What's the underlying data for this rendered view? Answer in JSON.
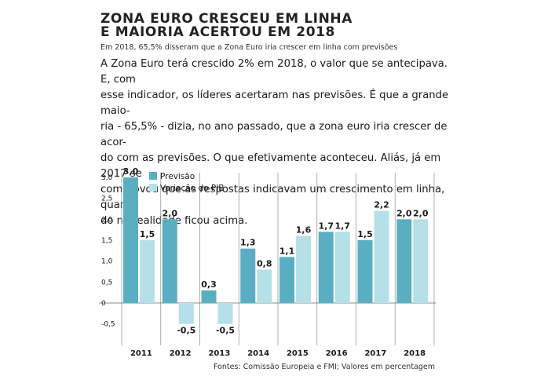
{
  "article": {
    "headline_line1": "ZONA EURO CRESCEU EM LINHA",
    "headline_line2": "E MAIORIA ACERTOU EM 2018",
    "subtitle": "Em 2018, 65,5% disseram que a Zona Euro iria crescer em linha com previsões",
    "body_lines": [
      "A Zona Euro terá crescido 2% em 2018, o valor que se antecipava. E, com",
      "esse indicador, os líderes acertaram nas previsões. É que a grande maio-",
      "ria - 65,5% - dizia, no ano passado, que a zona euro iria crescer de acor-",
      "do com as previsões. O que efetivamente aconteceu. Aliás, já em 2017 se",
      "comprovou que as respostas indicavam um crescimento em linha, quan-",
      "do na realidade ficou acima."
    ],
    "source": "Fontes: Comissão Europeia e FMI; Valores em percentagem"
  },
  "colors": {
    "previsao": "#5aaec1",
    "pib": "#b5e0e8",
    "grid": "#9a9a9a",
    "text": "#1a1a1a"
  },
  "chart_data": {
    "type": "bar",
    "categories": [
      "2011",
      "2012",
      "2013",
      "2014",
      "2015",
      "2016",
      "2017",
      "2018"
    ],
    "series": [
      {
        "name": "Previsão",
        "values": [
          3.0,
          2.0,
          0.3,
          1.3,
          1.1,
          1.7,
          1.5,
          2.0
        ],
        "labels": [
          "3,0",
          "2,0",
          "0,3",
          "1,3",
          "1,1",
          "1,7",
          "1,5",
          "2,0"
        ]
      },
      {
        "name": "Variação do PIB",
        "values": [
          1.5,
          -0.5,
          -0.5,
          0.8,
          1.6,
          1.7,
          2.2,
          2.0
        ],
        "labels": [
          "1,5",
          "-0,5",
          "-0,5",
          "0,8",
          "1,6",
          "1,7",
          "2,2",
          "2,0"
        ]
      }
    ],
    "yticks": [
      3.0,
      2.5,
      2.0,
      1.5,
      1.0,
      0.5,
      0,
      -0.5
    ],
    "ytick_labels": [
      "3,0",
      "2,5",
      "2,0",
      "1,5",
      "1,0",
      "0,5",
      "0",
      "-0,5"
    ],
    "ylim": [
      -0.5,
      3.0
    ],
    "grid": "vertical",
    "legend_position": "top-left"
  }
}
